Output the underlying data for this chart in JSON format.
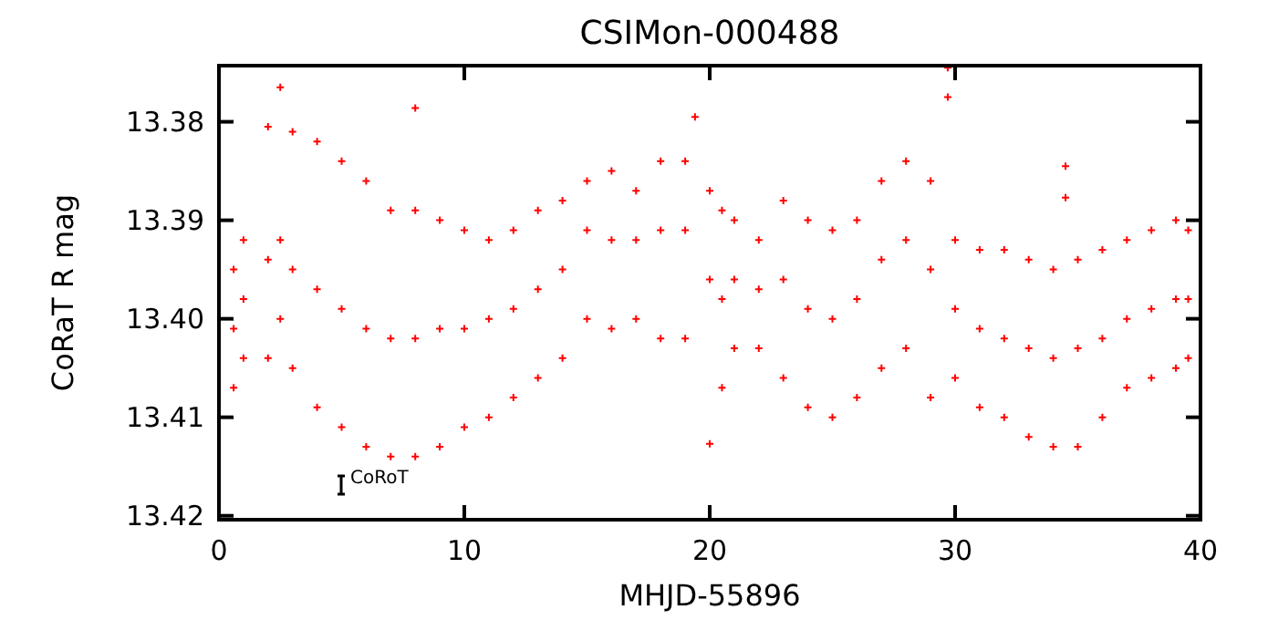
{
  "chart_data": {
    "type": "scatter",
    "title": "CSIMon-000488",
    "xlabel": "MHJD-55896",
    "ylabel": "CoRaT R mag",
    "xlim": [
      0,
      40
    ],
    "xticks": [
      0,
      10,
      20,
      30,
      40
    ],
    "ylim": [
      13.4204,
      13.3743
    ],
    "yticks": [
      13.38,
      13.39,
      {
        "value": 13.4,
        "label": "13.40"
      },
      13.41,
      13.42
    ],
    "marker": "cross",
    "grid": false,
    "annotations": [
      "CoRoT"
    ],
    "series": [
      {
        "color": "#ff0000",
        "x": [
          0.6,
          0.6,
          0.6,
          1.0,
          1.0,
          1.0,
          2.0,
          2.0,
          2.0,
          2.5,
          2.5,
          2.5,
          3.0,
          3.0,
          3.0,
          4.0,
          4.0,
          4.0,
          5.0,
          5.0,
          5.0,
          6.0,
          6.0,
          6.0,
          7.0,
          7.0,
          7.0,
          8.0,
          8.0,
          8.0,
          8.0,
          9,
          9,
          9,
          10,
          10,
          10,
          11,
          11,
          11,
          12,
          12,
          12,
          13,
          13,
          13,
          14,
          14,
          14,
          15,
          15,
          15,
          16,
          16,
          16,
          17,
          17,
          17,
          18,
          18,
          18,
          19,
          19,
          19,
          19.4,
          20,
          20,
          20,
          20.5,
          20.5,
          20.5,
          21,
          21,
          21,
          22,
          22,
          22,
          23,
          23,
          23,
          24,
          24,
          24,
          25,
          25,
          25,
          26,
          26,
          26,
          27,
          27,
          27,
          28,
          28,
          28,
          29,
          29,
          29,
          29.7,
          29.7,
          30,
          30,
          30,
          31,
          31,
          31,
          32,
          32,
          32,
          33,
          33,
          33,
          34,
          34,
          34,
          34.5,
          34.5,
          35,
          35,
          35,
          36,
          36,
          36,
          37,
          37,
          37,
          38,
          38,
          38,
          39,
          39,
          39,
          39.5,
          39.5,
          39.5
        ],
        "values": [
          13.395,
          13.401,
          13.407,
          13.392,
          13.398,
          13.404,
          13.3805,
          13.394,
          13.404,
          13.3765,
          13.392,
          13.4,
          13.381,
          13.395,
          13.405,
          13.382,
          13.397,
          13.409,
          13.384,
          13.399,
          13.411,
          13.386,
          13.401,
          13.413,
          13.389,
          13.402,
          13.414,
          13.3786,
          13.389,
          13.402,
          13.414,
          13.39,
          13.401,
          13.413,
          13.391,
          13.401,
          13.411,
          13.392,
          13.4,
          13.41,
          13.391,
          13.399,
          13.408,
          13.389,
          13.397,
          13.406,
          13.388,
          13.395,
          13.404,
          13.386,
          13.391,
          13.4,
          13.385,
          13.392,
          13.401,
          13.387,
          13.392,
          13.4,
          13.384,
          13.391,
          13.402,
          13.384,
          13.391,
          13.402,
          13.3795,
          13.387,
          13.396,
          13.4127,
          13.389,
          13.398,
          13.407,
          13.39,
          13.396,
          13.403,
          13.392,
          13.397,
          13.403,
          13.388,
          13.396,
          13.406,
          13.39,
          13.399,
          13.409,
          13.391,
          13.4,
          13.41,
          13.39,
          13.398,
          13.408,
          13.386,
          13.394,
          13.405,
          13.384,
          13.392,
          13.403,
          13.386,
          13.395,
          13.408,
          13.3745,
          13.3775,
          13.392,
          13.399,
          13.406,
          13.393,
          13.401,
          13.409,
          13.393,
          13.402,
          13.41,
          13.394,
          13.403,
          13.412,
          13.395,
          13.404,
          13.413,
          13.3845,
          13.3877,
          13.394,
          13.403,
          13.413,
          13.393,
          13.402,
          13.41,
          13.392,
          13.4,
          13.407,
          13.391,
          13.399,
          13.406,
          13.39,
          13.398,
          13.405,
          13.391,
          13.398,
          13.404
        ]
      }
    ]
  }
}
